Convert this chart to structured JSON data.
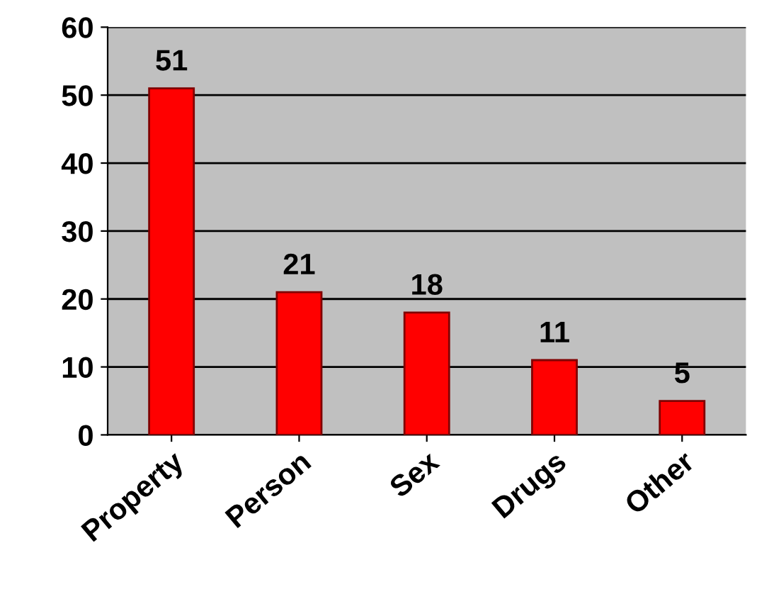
{
  "chart_data": {
    "type": "bar",
    "categories": [
      "Property",
      "Person",
      "Sex",
      "Drugs",
      "Other"
    ],
    "values": [
      51,
      21,
      18,
      11,
      5
    ],
    "color": "#ff0000",
    "ylim": [
      0,
      60
    ],
    "yticks": [
      0,
      10,
      20,
      30,
      40,
      50,
      60
    ],
    "grid": "y",
    "data_labels": true
  }
}
